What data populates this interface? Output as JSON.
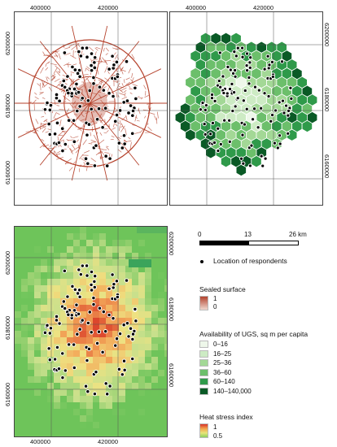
{
  "panels": {
    "sealed": {
      "x_ticks": [
        "400000",
        "420000"
      ],
      "y_ticks": [
        "6200000",
        "6180000",
        "6160000"
      ]
    },
    "ugs": {
      "x_ticks": [
        "400000",
        "420000"
      ],
      "y_ticks": [
        "6200000",
        "6180000",
        "6160000"
      ]
    },
    "heat": {
      "x_ticks": [
        "400000",
        "420000"
      ],
      "y_ticks_left": [
        "6200000",
        "6180000",
        "6160000"
      ],
      "y_ticks_right": [
        "6200000",
        "6180000",
        "6160000"
      ]
    }
  },
  "scale_bar": {
    "labels": [
      "0",
      "13",
      "26 km"
    ]
  },
  "legend": {
    "respondents_label": "Location of respondents",
    "sealed": {
      "title": "Sealed surface",
      "max_label": "1",
      "min_label": "0",
      "colors": [
        "#b2432e",
        "#f0d8ce"
      ]
    },
    "ugs": {
      "title": "Availability of UGS, sq m per capita",
      "classes": [
        {
          "label": "0–16",
          "color": "#eef7ea"
        },
        {
          "label": "16–25",
          "color": "#cdebc4"
        },
        {
          "label": "25–36",
          "color": "#a3d896"
        },
        {
          "label": "36–60",
          "color": "#6cbf6b"
        },
        {
          "label": "60–140",
          "color": "#2f9a4a"
        },
        {
          "label": "140–140,000",
          "color": "#0a5a26"
        }
      ]
    },
    "heat": {
      "title": "Heat stress index",
      "max_label": "1",
      "min_label": "0.5"
    }
  },
  "colors": {
    "sealed_line": "#b5412b",
    "respondent": "#000000",
    "grid": "#555555"
  }
}
